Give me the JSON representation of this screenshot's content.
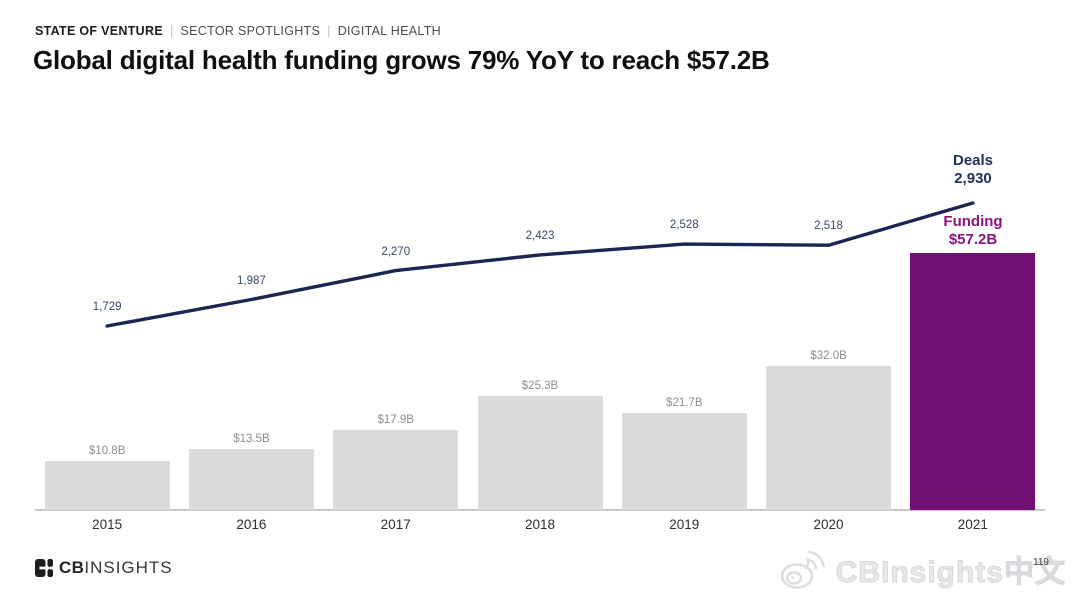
{
  "header": {
    "eyebrow": {
      "report": "STATE OF VENTURE",
      "separator": "|",
      "section": "SECTOR SPOTLIGHTS",
      "topic": "DIGITAL HEALTH"
    },
    "title": "Global digital health funding grows 79% YoY to reach $57.2B"
  },
  "chart_data": {
    "type": "combo (bar + line)",
    "categories": [
      "2015",
      "2016",
      "2017",
      "2018",
      "2019",
      "2020",
      "2021"
    ],
    "series": [
      {
        "name": "Funding",
        "type": "bar",
        "unit": "USD billions",
        "values": [
          10.8,
          13.5,
          17.9,
          25.3,
          21.7,
          32.0,
          57.2
        ],
        "labels": [
          "$10.8B",
          "$13.5B",
          "$17.9B",
          "$25.3B",
          "$21.7B",
          "$32.0B",
          "$57.2B"
        ]
      },
      {
        "name": "Deals",
        "type": "line",
        "values": [
          1729,
          1987,
          2270,
          2423,
          2528,
          2518,
          2930
        ],
        "labels": [
          "1,729",
          "1,987",
          "2,270",
          "2,423",
          "2,528",
          "2,518",
          "2,930"
        ]
      }
    ],
    "highlight_category": "2021",
    "annotations": {
      "deals_label": "Deals",
      "deals_value": "2,930",
      "funding_label": "Funding",
      "funding_value": "$57.2B"
    },
    "colors": {
      "bar": "#dbdadc",
      "bar_highlight": "#711072",
      "line": "#1b2655",
      "deal_label": "#3b4766",
      "funding_label": "#8e8e92",
      "axis_line": "#c9c9cd",
      "deals_annotation": "#233061",
      "funding_annotation": "#8c1282",
      "year_label": "#2e2e30"
    },
    "grid": false,
    "y_axis": "none (values labeled directly on bars and line points)"
  },
  "footer": {
    "logo": {
      "bold": "CB",
      "light": "INSIGHTS"
    },
    "watermark": {
      "icon": "weibo-icon",
      "text": "CBInsights中文"
    },
    "page_number": "119"
  }
}
